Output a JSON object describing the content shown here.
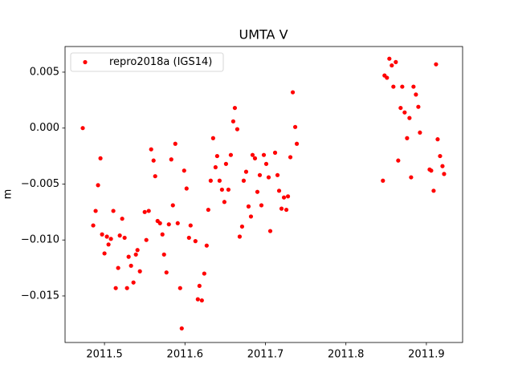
{
  "chart_data": {
    "type": "scatter",
    "title": "UMTA V",
    "y_label": "m",
    "xlim": [
      2011.451,
      2011.945
    ],
    "ylim": [
      -0.01916,
      0.00729
    ],
    "xticks": [
      2011.5,
      2011.6,
      2011.7,
      2011.8,
      2011.9
    ],
    "yticks": [
      0.005,
      {
        "value": 0,
        "label": "0.000"
      },
      {
        "value": -0.005,
        "label": "−0.005"
      },
      {
        "value": -0.01,
        "label": "−0.010"
      },
      {
        "value": -0.015,
        "label": "−0.015"
      }
    ],
    "legend": "upper left",
    "series": [
      {
        "name": "repro2018a (IGS14)",
        "color": "#ff0000",
        "x": [
          2011.473,
          2011.486,
          2011.489,
          2011.492,
          2011.495,
          2011.497,
          2011.5,
          2011.503,
          2011.505,
          2011.508,
          2011.511,
          2011.514,
          2011.517,
          2011.519,
          2011.522,
          2011.525,
          2011.528,
          2011.53,
          2011.533,
          2011.536,
          2011.539,
          2011.541,
          2011.544,
          2011.55,
          2011.552,
          2011.555,
          2011.558,
          2011.561,
          2011.563,
          2011.566,
          2011.569,
          2011.572,
          2011.574,
          2011.577,
          2011.58,
          2011.583,
          2011.585,
          2011.588,
          2011.591,
          2011.594,
          2011.596,
          2011.599,
          2011.602,
          2011.605,
          2011.607,
          2011.613,
          2011.616,
          2011.618,
          2011.621,
          2011.624,
          2011.627,
          2011.629,
          2011.632,
          2011.635,
          2011.638,
          2011.64,
          2011.643,
          2011.646,
          2011.649,
          2011.651,
          2011.654,
          2011.657,
          2011.66,
          2011.662,
          2011.665,
          2011.668,
          2011.671,
          2011.673,
          2011.676,
          2011.679,
          2011.682,
          2011.684,
          2011.687,
          2011.69,
          2011.693,
          2011.695,
          2011.698,
          2011.701,
          2011.704,
          2011.706,
          2011.712,
          2011.715,
          2011.717,
          2011.72,
          2011.723,
          2011.726,
          2011.728,
          2011.731,
          2011.734,
          2011.737,
          2011.739,
          2011.846,
          2011.848,
          2011.851,
          2011.854,
          2011.857,
          2011.859,
          2011.862,
          2011.865,
          2011.868,
          2011.87,
          2011.873,
          2011.876,
          2011.879,
          2011.881,
          2011.884,
          2011.887,
          2011.89,
          2011.892,
          2011.904,
          2011.906,
          2011.909,
          2011.912,
          2011.914,
          2011.917,
          2011.92,
          2011.922
        ],
        "values": [
          0.0,
          -0.0087,
          -0.0074,
          -0.0051,
          -0.0027,
          -0.0095,
          -0.0112,
          -0.0097,
          -0.0104,
          -0.0099,
          -0.0074,
          -0.0143,
          -0.0125,
          -0.0096,
          -0.0081,
          -0.0098,
          -0.0143,
          -0.0115,
          -0.0123,
          -0.0138,
          -0.0113,
          -0.0109,
          -0.0128,
          -0.0075,
          -0.01,
          -0.0074,
          -0.0019,
          -0.0029,
          -0.0043,
          -0.0083,
          -0.0085,
          -0.0095,
          -0.0113,
          -0.0129,
          -0.0086,
          -0.0028,
          -0.0069,
          -0.0014,
          -0.0085,
          -0.0143,
          -0.0179,
          -0.0038,
          -0.0054,
          -0.0098,
          -0.0087,
          -0.0101,
          -0.0153,
          -0.0141,
          -0.0154,
          -0.013,
          -0.0105,
          -0.0073,
          -0.0047,
          -0.0009,
          -0.0035,
          -0.0025,
          -0.0047,
          -0.0055,
          -0.0066,
          -0.0032,
          -0.0055,
          -0.0024,
          0.0006,
          0.0018,
          -0.0001,
          -0.0097,
          -0.0088,
          -0.0047,
          -0.0039,
          -0.007,
          -0.0079,
          -0.0024,
          -0.0027,
          -0.0057,
          -0.0042,
          -0.0069,
          -0.0024,
          -0.0032,
          -0.0044,
          -0.0092,
          -0.0022,
          -0.0042,
          -0.0056,
          -0.0072,
          -0.0062,
          -0.0073,
          -0.0061,
          -0.0026,
          0.0032,
          0.0001,
          -0.0014,
          -0.0047,
          0.0047,
          0.0045,
          0.0062,
          0.0056,
          0.0037,
          0.0059,
          -0.0029,
          0.0018,
          0.0037,
          0.0014,
          -0.0009,
          0.0009,
          -0.0044,
          0.0037,
          0.003,
          0.0019,
          -0.0004,
          -0.0037,
          -0.0038,
          -0.0056,
          0.0057,
          -0.001,
          -0.0025,
          -0.0034,
          -0.0041
        ]
      }
    ]
  }
}
